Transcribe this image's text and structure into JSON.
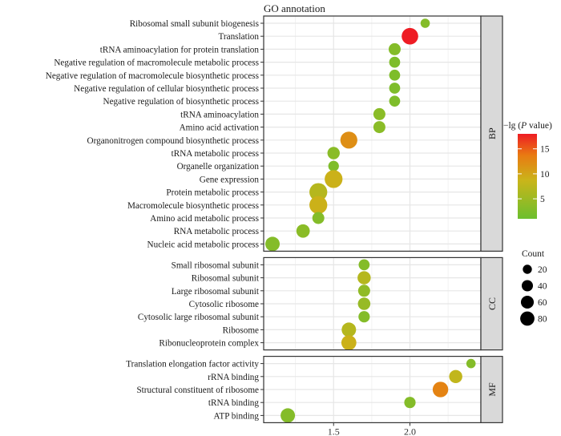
{
  "chart_data": {
    "type": "scatter",
    "subtype": "dot-plot",
    "title": "GO annotation",
    "xlabel": "",
    "ylabel": "",
    "x_ticks": [
      1.5,
      2.0
    ],
    "x_tick_labels": [
      "1.5",
      "2.0"
    ],
    "xlim": [
      1.05,
      2.45
    ],
    "grid": true,
    "color_legend": {
      "title_prefix": "−lg (",
      "title_italic": "P",
      "title_suffix": " value)",
      "range": [
        1,
        18
      ],
      "ticks": [
        5,
        10,
        15
      ],
      "tick_labels": [
        "5",
        "10",
        "15"
      ],
      "low_color": "#6cbf2e",
      "mid_color": "#c9b51a",
      "high_color": "#ee1c24",
      "placement": "right"
    },
    "size_legend": {
      "title": "Count",
      "values": [
        20,
        40,
        60,
        80
      ],
      "labels": [
        "20",
        "40",
        "60",
        "80"
      ],
      "placement": "right"
    },
    "facets": [
      {
        "label": "BP",
        "terms": [
          {
            "term": "Ribosomal small subunit biogenesis",
            "x": 2.1,
            "count": 8,
            "neg_log_p": 3
          },
          {
            "term": "Translation",
            "x": 2.0,
            "count": 60,
            "neg_log_p": 18
          },
          {
            "term": "tRNA aminoacylation for protein translation",
            "x": 1.9,
            "count": 22,
            "neg_log_p": 3
          },
          {
            "term": "Negative regulation of macromolecule metabolic process",
            "x": 1.9,
            "count": 16,
            "neg_log_p": 2.5
          },
          {
            "term": "Negative regulation of macromolecule biosynthetic process",
            "x": 1.9,
            "count": 16,
            "neg_log_p": 2.5
          },
          {
            "term": "Negative regulation of cellular biosynthetic process",
            "x": 1.9,
            "count": 16,
            "neg_log_p": 2.5
          },
          {
            "term": "Negative regulation of biosynthetic process",
            "x": 1.9,
            "count": 16,
            "neg_log_p": 2.5
          },
          {
            "term": "tRNA aminoacylation",
            "x": 1.8,
            "count": 22,
            "neg_log_p": 3.5
          },
          {
            "term": "Amino acid activation",
            "x": 1.8,
            "count": 22,
            "neg_log_p": 3.5
          },
          {
            "term": "Organonitrogen compound biosynthetic process",
            "x": 1.6,
            "count": 65,
            "neg_log_p": 12
          },
          {
            "term": "tRNA metabolic process",
            "x": 1.5,
            "count": 24,
            "neg_log_p": 3.5
          },
          {
            "term": "Organelle organization",
            "x": 1.5,
            "count": 14,
            "neg_log_p": 2.5
          },
          {
            "term": "Gene expression",
            "x": 1.5,
            "count": 75,
            "neg_log_p": 9
          },
          {
            "term": "Protein metabolic process",
            "x": 1.4,
            "count": 75,
            "neg_log_p": 7
          },
          {
            "term": "Macromolecule biosynthetic process",
            "x": 1.4,
            "count": 75,
            "neg_log_p": 9
          },
          {
            "term": "Amino acid metabolic process",
            "x": 1.4,
            "count": 22,
            "neg_log_p": 3
          },
          {
            "term": "RNA metabolic process",
            "x": 1.3,
            "count": 32,
            "neg_log_p": 3.5
          },
          {
            "term": "Nucleic acid metabolic process",
            "x": 1.1,
            "count": 40,
            "neg_log_p": 3
          }
        ]
      },
      {
        "label": "CC",
        "terms": [
          {
            "term": "Small ribosomal subunit",
            "x": 1.7,
            "count": 16,
            "neg_log_p": 3
          },
          {
            "term": "Ribosomal subunit",
            "x": 1.7,
            "count": 30,
            "neg_log_p": 7
          },
          {
            "term": "Large ribosomal subunit",
            "x": 1.7,
            "count": 22,
            "neg_log_p": 4
          },
          {
            "term": "Cytosolic ribosome",
            "x": 1.7,
            "count": 25,
            "neg_log_p": 4.5
          },
          {
            "term": "Cytosolic large ribosomal subunit",
            "x": 1.7,
            "count": 18,
            "neg_log_p": 3
          },
          {
            "term": "Ribosome",
            "x": 1.6,
            "count": 40,
            "neg_log_p": 7
          },
          {
            "term": "Ribonucleoprotein complex",
            "x": 1.6,
            "count": 45,
            "neg_log_p": 9
          }
        ]
      },
      {
        "label": "MF",
        "terms": [
          {
            "term": "Translation elongation factor activity",
            "x": 2.4,
            "count": 8,
            "neg_log_p": 3
          },
          {
            "term": "rRNA binding",
            "x": 2.3,
            "count": 30,
            "neg_log_p": 8
          },
          {
            "term": "Structural constituent of ribosome",
            "x": 2.2,
            "count": 50,
            "neg_log_p": 13
          },
          {
            "term": "tRNA binding",
            "x": 2.0,
            "count": 18,
            "neg_log_p": 3
          },
          {
            "term": "ATP binding",
            "x": 1.2,
            "count": 40,
            "neg_log_p": 3
          }
        ]
      }
    ]
  }
}
